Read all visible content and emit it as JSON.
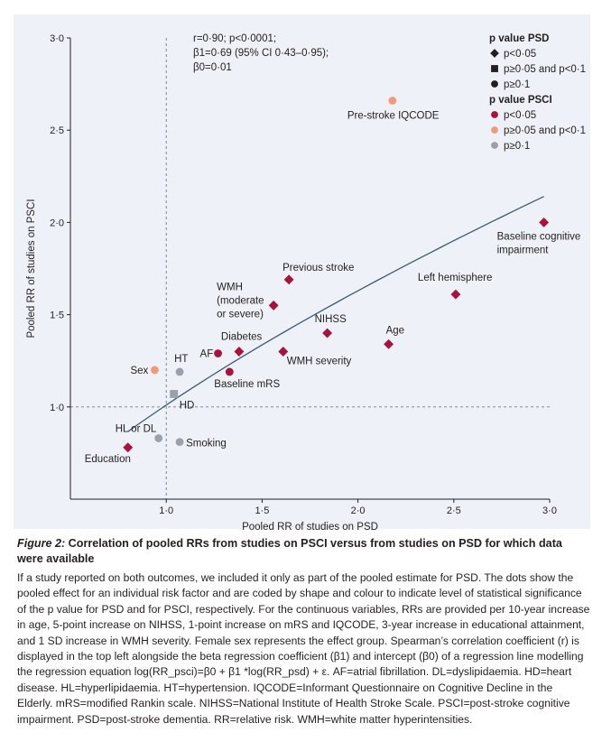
{
  "chart_data": {
    "type": "scatter",
    "xlabel": "Pooled RR of studies on PSD",
    "ylabel": "Pooled RR of studies on PSCI",
    "xlim": [
      0.5,
      3.0
    ],
    "ylim": [
      0.5,
      3.0
    ],
    "x_ticks": [
      1.0,
      1.5,
      2.0,
      2.5,
      3.0
    ],
    "y_ticks": [
      1.0,
      1.5,
      2.0,
      2.5,
      3.0
    ],
    "x_tick_labels": [
      "1·0",
      "1·5",
      "2·0",
      "2·5",
      "3·0"
    ],
    "y_tick_labels": [
      "1·0",
      "1·5",
      "2·0",
      "2·5",
      "3·0"
    ],
    "reference_lines": {
      "x": 1.0,
      "y": 1.0
    },
    "regression_line": {
      "x_start": 0.8,
      "x_end": 2.97
    },
    "annotation_lines": [
      "r=0·90; p<0·0001;",
      "β1=0·69 (95% CI 0·43–0·95);",
      "β0=0·01"
    ],
    "legend_psd": {
      "title": "p value PSD",
      "items": [
        {
          "label": "p<0·05",
          "shape": "diamond"
        },
        {
          "label": "p≥0·05 and p<0·1",
          "shape": "square"
        },
        {
          "label": "p≥0·1",
          "shape": "circle"
        }
      ]
    },
    "legend_psci": {
      "title": "p value PSCI",
      "items": [
        {
          "label": "p<0·05",
          "color": "#a8123e"
        },
        {
          "label": "p≥0·05 and p<0·1",
          "color": "#ee9b78"
        },
        {
          "label": "p≥0·1",
          "color": "#9ba1a8"
        }
      ]
    },
    "points": [
      {
        "label": "Pre-stroke IQCODE",
        "x": 2.18,
        "y": 2.66,
        "shape": "circle",
        "color": "#ee9b78"
      },
      {
        "label": "Baseline cognitive impairment",
        "label_lines": [
          "Baseline cognitive",
          "impairment"
        ],
        "x": 2.97,
        "y": 2.0,
        "shape": "diamond",
        "color": "#a8123e"
      },
      {
        "label": "Previous stroke",
        "x": 1.64,
        "y": 1.69,
        "shape": "diamond",
        "color": "#a8123e"
      },
      {
        "label": "Left hemisphere",
        "x": 2.51,
        "y": 1.61,
        "shape": "diamond",
        "color": "#a8123e"
      },
      {
        "label": "WMH (moderate or severe)",
        "label_lines": [
          "WMH",
          "(moderate",
          "or severe)"
        ],
        "x": 1.56,
        "y": 1.55,
        "shape": "diamond",
        "color": "#a8123e"
      },
      {
        "label": "NIHSS",
        "x": 1.84,
        "y": 1.4,
        "shape": "diamond",
        "color": "#a8123e"
      },
      {
        "label": "Age",
        "x": 2.16,
        "y": 1.34,
        "shape": "diamond",
        "color": "#a8123e"
      },
      {
        "label": "Diabetes",
        "x": 1.38,
        "y": 1.3,
        "shape": "diamond",
        "color": "#a8123e"
      },
      {
        "label": "WMH severity",
        "x": 1.61,
        "y": 1.3,
        "shape": "diamond",
        "color": "#a8123e"
      },
      {
        "label": "AF",
        "x": 1.27,
        "y": 1.29,
        "shape": "circle",
        "color": "#a8123e"
      },
      {
        "label": "Baseline mRS",
        "x": 1.33,
        "y": 1.19,
        "shape": "circle",
        "color": "#a8123e"
      },
      {
        "label": "Sex",
        "x": 0.94,
        "y": 1.2,
        "shape": "circle",
        "color": "#ee9b78"
      },
      {
        "label": "HT",
        "x": 1.07,
        "y": 1.19,
        "shape": "circle",
        "color": "#9ba1a8"
      },
      {
        "label": "HD",
        "x": 1.04,
        "y": 1.07,
        "shape": "square",
        "color": "#9ba1a8"
      },
      {
        "label": "HL or DL",
        "x": 0.96,
        "y": 0.83,
        "shape": "circle",
        "color": "#9ba1a8"
      },
      {
        "label": "Smoking",
        "x": 1.07,
        "y": 0.81,
        "shape": "circle",
        "color": "#9ba1a8"
      },
      {
        "label": "Education",
        "x": 0.8,
        "y": 0.78,
        "shape": "diamond",
        "color": "#a8123e"
      }
    ]
  },
  "colors": {
    "panel_bg": "#eef1f7",
    "axis": "#231f20",
    "regression": "#3d5a73",
    "reference": "#6a7f95",
    "sig": "#a8123e",
    "trend": "#ee9b78",
    "ns": "#9ba1a8"
  },
  "caption": {
    "figure_label": "Figure 2:",
    "title": " Correlation of pooled RRs from studies on PSCI versus from studies on PSD for which data were available",
    "body": "If a study reported on both outcomes, we included it only as part of the pooled estimate for PSD. The dots show the pooled effect for an individual risk factor and are coded by shape and colour to indicate level of statistical significance of the p value for PSD and for PSCI, respectively. For the continuous variables, RRs are provided per 10-year increase in age, 5-point increase on NIHSS, 1-point increase on mRS and IQCODE, 3-year increase in educational attainment, and 1 SD increase in WMH severity. Female sex represents the effect group. Spearman’s correlation coefficient (r) is displayed in the top left alongside the beta regression coefficient (β1) and intercept (β0) of a regression line modelling the regression equation log(RR_psci)=β0 + β1 *log(RR_psd) + ε. AF=atrial fibrillation. DL=dyslipidaemia. HD=heart disease. HL=hyperlipidaemia. HT=hypertension. IQCODE=Informant Questionnaire on Cognitive Decline in the Elderly. mRS=modified Rankin scale. NIHSS=National Institute of Health Stroke Scale. PSCI=post-stroke cognitive impairment. PSD=post-stroke dementia. RR=relative risk. WMH=white matter hyperintensities."
  }
}
